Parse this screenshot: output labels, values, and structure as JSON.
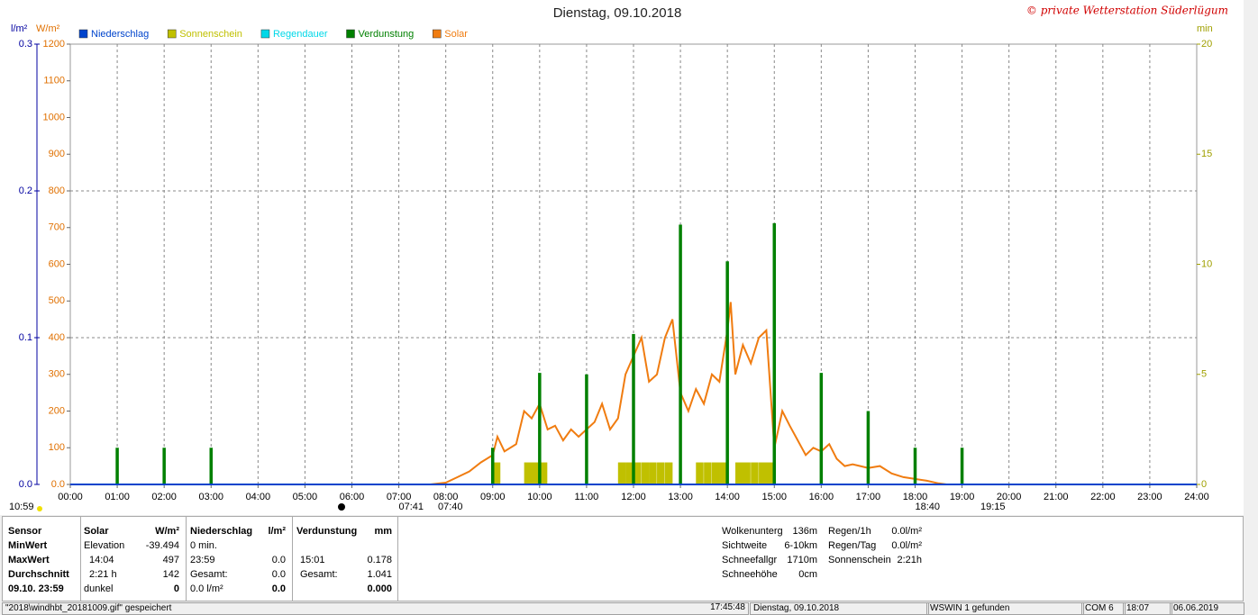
{
  "chart_data": {
    "type": "line",
    "title": "Dienstag, 09.10.2018",
    "credit": "© private Wetterstation Süderlügum",
    "ylabel": "W/m²",
    "y3label": "l/m²",
    "y2label": "min",
    "xlim": [
      0,
      24
    ],
    "xticks": [
      {
        "value": 0,
        "label": "00:00"
      },
      {
        "value": 1,
        "label": "01:00"
      },
      {
        "value": 2,
        "label": "02:00"
      },
      {
        "value": 3,
        "label": "03:00"
      },
      {
        "value": 4,
        "label": "04:00"
      },
      {
        "value": 5,
        "label": "05:00"
      },
      {
        "value": 6,
        "label": "06:00"
      },
      {
        "value": 7,
        "label": "07:00"
      },
      {
        "value": 8,
        "label": "08:00"
      },
      {
        "value": 9,
        "label": "09:00"
      },
      {
        "value": 10,
        "label": "10:00"
      },
      {
        "value": 11,
        "label": "11:00"
      },
      {
        "value": 12,
        "label": "12:00"
      },
      {
        "value": 13,
        "label": "13:00"
      },
      {
        "value": 14,
        "label": "14:00"
      },
      {
        "value": 15,
        "label": "15:00"
      },
      {
        "value": 16,
        "label": "16:00"
      },
      {
        "value": 17,
        "label": "17:00"
      },
      {
        "value": 18,
        "label": "18:00"
      },
      {
        "value": 19,
        "label": "19:00"
      },
      {
        "value": 20,
        "label": "20:00"
      },
      {
        "value": 21,
        "label": "21:00"
      },
      {
        "value": 22,
        "label": "22:00"
      },
      {
        "value": 23,
        "label": "23:00"
      },
      {
        "value": 24,
        "label": "24:00"
      }
    ],
    "ylim": [
      0,
      1200
    ],
    "yticks": [
      {
        "value": 0,
        "label": "0.0"
      },
      100,
      200,
      300,
      400,
      500,
      600,
      700,
      800,
      900,
      1000,
      1100,
      1200
    ],
    "y3lim": [
      0,
      0.3
    ],
    "y3ticks": [
      {
        "value": 0,
        "label": "0.0"
      },
      0.1,
      0.2,
      0.3
    ],
    "y2lim": [
      0,
      20
    ],
    "y2ticks": [
      0,
      5,
      10,
      15,
      20
    ],
    "grid": true,
    "series": [
      {
        "name": "Niederschlag",
        "color": "#0044cc",
        "kind": "line",
        "axis": "y3",
        "x": [
          0,
          24
        ],
        "values": [
          0,
          0
        ]
      },
      {
        "name": "Sonnenschein",
        "color": "#c0c000",
        "kind": "bar",
        "axis": "y2",
        "x": [
          9.0,
          9.67,
          9.83,
          10.0,
          11.67,
          11.83,
          12.0,
          12.17,
          12.33,
          12.5,
          12.67,
          13.33,
          13.5,
          13.67,
          13.83,
          14.17,
          14.33,
          14.5,
          14.67,
          14.83
        ],
        "values": [
          1,
          1,
          1,
          1,
          1,
          1,
          1,
          1,
          1,
          1,
          1,
          1,
          1,
          1,
          1,
          1,
          1,
          1,
          1,
          1
        ]
      },
      {
        "name": "Regendauer",
        "color": "#00d8e8",
        "kind": "bar",
        "axis": "y2",
        "x": [],
        "values": []
      },
      {
        "name": "Verdunstung",
        "color": "#008000",
        "kind": "bar",
        "axis": "y3",
        "x": [
          1,
          2,
          3,
          9,
          10,
          11,
          12,
          13,
          14,
          15,
          16,
          17,
          18,
          19
        ],
        "values": [
          0.025,
          0.025,
          0.025,
          0.025,
          0.076,
          0.075,
          0.1025,
          0.177,
          0.152,
          0.178,
          0.076,
          0.05,
          0.025,
          0.025
        ]
      },
      {
        "name": "Solar",
        "color": "#f07c10",
        "kind": "line",
        "axis": "y",
        "x": [
          7.67,
          8.0,
          8.25,
          8.5,
          8.75,
          9.0,
          9.1,
          9.25,
          9.5,
          9.67,
          9.83,
          10.0,
          10.17,
          10.33,
          10.5,
          10.67,
          10.83,
          11.0,
          11.17,
          11.33,
          11.5,
          11.67,
          11.83,
          12.0,
          12.17,
          12.33,
          12.5,
          12.67,
          12.83,
          13.0,
          13.17,
          13.33,
          13.5,
          13.67,
          13.83,
          14.0,
          14.07,
          14.17,
          14.33,
          14.5,
          14.67,
          14.83,
          15.0,
          15.17,
          15.33,
          15.5,
          15.67,
          15.83,
          16.0,
          16.17,
          16.33,
          16.5,
          16.67,
          16.83,
          17.0,
          17.25,
          17.5,
          17.75,
          18.0,
          18.25,
          18.5,
          18.67
        ],
        "values": [
          0,
          5,
          20,
          35,
          60,
          80,
          130,
          90,
          110,
          200,
          180,
          220,
          150,
          160,
          120,
          150,
          130,
          150,
          170,
          220,
          150,
          180,
          300,
          350,
          400,
          280,
          300,
          400,
          450,
          250,
          200,
          260,
          220,
          300,
          280,
          420,
          497,
          300,
          380,
          330,
          400,
          420,
          100,
          200,
          160,
          120,
          80,
          100,
          90,
          110,
          70,
          50,
          55,
          50,
          45,
          50,
          30,
          20,
          15,
          10,
          3,
          0
        ]
      }
    ],
    "annotations": [
      "10:59",
      "07:41",
      "07:40",
      "18:40",
      "19:15"
    ]
  },
  "stats": {
    "labels": [
      "Sensor",
      "MinWert",
      "MaxWert",
      "Durchschnitt",
      "09.10. 23:59"
    ],
    "columns": [
      {
        "header": "Solar",
        "unit": "W/m²",
        "rows": [
          {
            "label": "Elevation",
            "value": "-39.494"
          },
          {
            "label": "14:04",
            "value": "497"
          },
          {
            "label": "2:21 h",
            "value": "142"
          },
          {
            "label": "dunkel",
            "value": "0"
          }
        ]
      },
      {
        "header": "Niederschlag",
        "unit": "l/m²",
        "rows": [
          {
            "label": "0 min."
          },
          {
            "label": "23:59",
            "value": "0.0"
          },
          {
            "label": "Gesamt:",
            "value": "0.0"
          },
          {
            "label": "0.0 l/m²",
            "value": "0.0"
          }
        ]
      },
      {
        "header": "Verdunstung",
        "unit": "mm",
        "rows": [
          {},
          {
            "label": "15:01",
            "value": "0.178"
          },
          {
            "label": "Gesamt:",
            "value": "1.041"
          },
          {
            "value": "0.000"
          }
        ]
      }
    ],
    "conditions": [
      {
        "label": "Wolkenunterg",
        "value": "136m"
      },
      {
        "label": "Sichtweite",
        "value": "6-10km"
      },
      {
        "label": "Schneefallgr",
        "value": "1710m"
      },
      {
        "label": "Schneehöhe",
        "value": "0cm"
      }
    ],
    "rain": [
      {
        "label": "Regen/1h",
        "value": "0.0l/m²"
      },
      {
        "label": "Regen/Tag",
        "value": "0.0l/m²"
      },
      {
        "label": "Sonnenschein",
        "value": "2:21h"
      }
    ]
  },
  "status_bar": [
    "\"2018\\windhbt_20181009.gif\" gespeichert",
    "17:45:48",
    "Dienstag, 09.10.2018",
    "WSWIN 1 gefunden",
    "COM 6",
    "18:07",
    "06.06.2019"
  ]
}
